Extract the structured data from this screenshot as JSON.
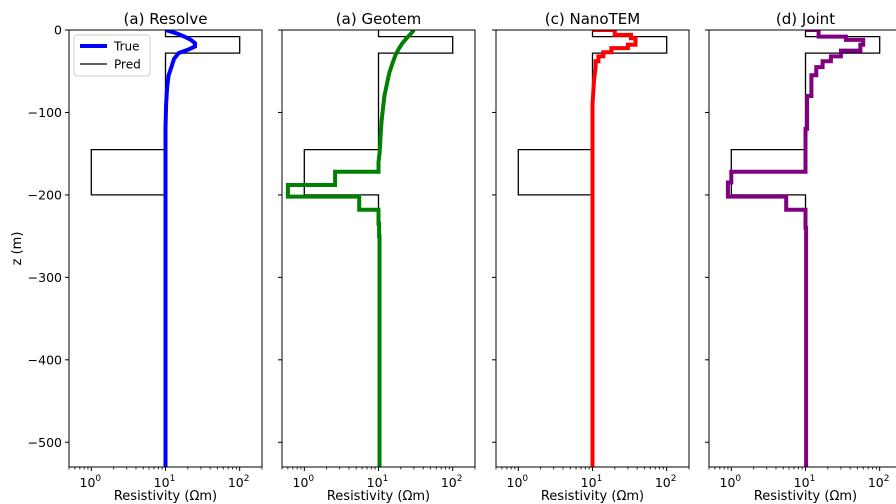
{
  "chart_data": [
    {
      "type": "line",
      "title": "(a) Resolve",
      "xlabel": "Resistivity (Ωm)",
      "ylabel": "z (m)",
      "xscale": "log",
      "xlim": [
        0.5,
        200
      ],
      "ylim": [
        -530,
        0
      ],
      "xticks": [
        {
          "value": 1,
          "base": "10",
          "exp": "0"
        },
        {
          "value": 10,
          "base": "10",
          "exp": "1"
        },
        {
          "value": 100,
          "base": "10",
          "exp": "2"
        }
      ],
      "yticks": [
        {
          "value": 0,
          "label": "0"
        },
        {
          "value": -100,
          "label": "−100"
        },
        {
          "value": -200,
          "label": "−200"
        },
        {
          "value": -300,
          "label": "−300"
        },
        {
          "value": -400,
          "label": "−400"
        },
        {
          "value": -500,
          "label": "−500"
        }
      ],
      "legend": {
        "placement": "top-left",
        "entries": [
          {
            "label": "True",
            "color": "#0000ff",
            "style": "thick"
          },
          {
            "label": "Pred",
            "color": "#000000",
            "style": "thin"
          }
        ]
      },
      "series": [
        {
          "name": "True",
          "color": "#0000ff",
          "x": [
            10,
            14,
            18,
            22,
            25,
            25,
            20,
            15,
            13,
            12,
            11,
            10.5,
            10.2,
            10,
            10,
            10
          ],
          "y": [
            0,
            -4,
            -8,
            -12,
            -16,
            -20,
            -24,
            -28,
            -35,
            -45,
            -55,
            -70,
            -90,
            -120,
            -300,
            -530
          ]
        },
        {
          "name": "Pred",
          "color": "#000000",
          "x": [
            10,
            10,
            100,
            100,
            10,
            10,
            1,
            1,
            10,
            10
          ],
          "y": [
            0,
            -8,
            -8,
            -28,
            -28,
            -145,
            -145,
            -200,
            -200,
            -530
          ]
        }
      ]
    },
    {
      "type": "line",
      "title": "(a) Geotem",
      "xlabel": "Resistivity (Ωm)",
      "xscale": "log",
      "xlim": [
        0.5,
        200
      ],
      "ylim": [
        -530,
        0
      ],
      "xticks": [
        {
          "value": 1,
          "base": "10",
          "exp": "0"
        },
        {
          "value": 10,
          "base": "10",
          "exp": "1"
        },
        {
          "value": 100,
          "base": "10",
          "exp": "2"
        }
      ],
      "series": [
        {
          "name": "True",
          "color": "#008000",
          "x": [
            30,
            27,
            24,
            21,
            19,
            17,
            15.5,
            14,
            13,
            12,
            11.5,
            11,
            10.7,
            10.5,
            10.3,
            10,
            10,
            2.6,
            2.6,
            0.6,
            0.6,
            5.5,
            5.5,
            10,
            10,
            10.2,
            10.2,
            10.3,
            10.3
          ],
          "y": [
            0,
            -5,
            -10,
            -16,
            -22,
            -30,
            -40,
            -52,
            -65,
            -80,
            -95,
            -110,
            -125,
            -140,
            -150,
            -160,
            -172,
            -172,
            -188,
            -188,
            -202,
            -202,
            -218,
            -218,
            -235,
            -235,
            -250,
            -250,
            -530
          ]
        },
        {
          "name": "Pred",
          "color": "#000000",
          "x": [
            10,
            10,
            100,
            100,
            10,
            10,
            1,
            1,
            10,
            10
          ],
          "y": [
            0,
            -8,
            -8,
            -28,
            -28,
            -145,
            -145,
            -200,
            -200,
            -530
          ]
        }
      ]
    },
    {
      "type": "line",
      "title": "(c) NanoTEM",
      "xlabel": "Resistivity (Ωm)",
      "xscale": "log",
      "xlim": [
        0.5,
        200
      ],
      "ylim": [
        -530,
        0
      ],
      "xticks": [
        {
          "value": 1,
          "base": "10",
          "exp": "0"
        },
        {
          "value": 10,
          "base": "10",
          "exp": "1"
        },
        {
          "value": 100,
          "base": "10",
          "exp": "2"
        }
      ],
      "series": [
        {
          "name": "True",
          "color": "#ff0000",
          "x": [
            10,
            20,
            20,
            33,
            33,
            38,
            38,
            30,
            30,
            18,
            18,
            14,
            14,
            12,
            12,
            11,
            11,
            10.5,
            10,
            10
          ],
          "y": [
            0,
            0,
            -6,
            -6,
            -10,
            -10,
            -18,
            -18,
            -22,
            -22,
            -27,
            -27,
            -32,
            -32,
            -38,
            -38,
            -45,
            -60,
            -90,
            -530
          ]
        },
        {
          "name": "Pred",
          "color": "#000000",
          "x": [
            10,
            10,
            100,
            100,
            10,
            10,
            1,
            1,
            10,
            10
          ],
          "y": [
            0,
            -8,
            -8,
            -28,
            -28,
            -145,
            -145,
            -200,
            -200,
            -530
          ]
        }
      ]
    },
    {
      "type": "line",
      "title": "(d) Joint",
      "xlabel": "Resistivity (Ωm)",
      "xscale": "log",
      "xlim": [
        0.5,
        200
      ],
      "ylim": [
        -530,
        0
      ],
      "xticks": [
        {
          "value": 1,
          "base": "10",
          "exp": "0"
        },
        {
          "value": 10,
          "base": "10",
          "exp": "1"
        },
        {
          "value": 100,
          "base": "10",
          "exp": "2"
        }
      ],
      "series": [
        {
          "name": "True",
          "color": "#800080",
          "x": [
            10,
            15,
            15,
            35,
            35,
            60,
            60,
            55,
            55,
            30,
            30,
            22,
            22,
            17,
            17,
            14,
            14,
            12,
            12,
            10.5,
            10.5,
            10,
            10,
            1,
            1,
            0.9,
            0.9,
            5.5,
            5.5,
            10,
            10,
            10.2,
            10.2
          ],
          "y": [
            0,
            0,
            -8,
            -8,
            -12,
            -12,
            -18,
            -18,
            -25,
            -25,
            -32,
            -32,
            -38,
            -38,
            -45,
            -45,
            -55,
            -55,
            -80,
            -80,
            -120,
            -120,
            -172,
            -172,
            -185,
            -185,
            -202,
            -202,
            -218,
            -218,
            -240,
            -240,
            -530
          ]
        },
        {
          "name": "Pred",
          "color": "#000000",
          "x": [
            10,
            10,
            100,
            100,
            10,
            10,
            1,
            1,
            10,
            10
          ],
          "y": [
            0,
            -8,
            -8,
            -28,
            -28,
            -145,
            -145,
            -200,
            -200,
            -530
          ]
        }
      ]
    }
  ]
}
